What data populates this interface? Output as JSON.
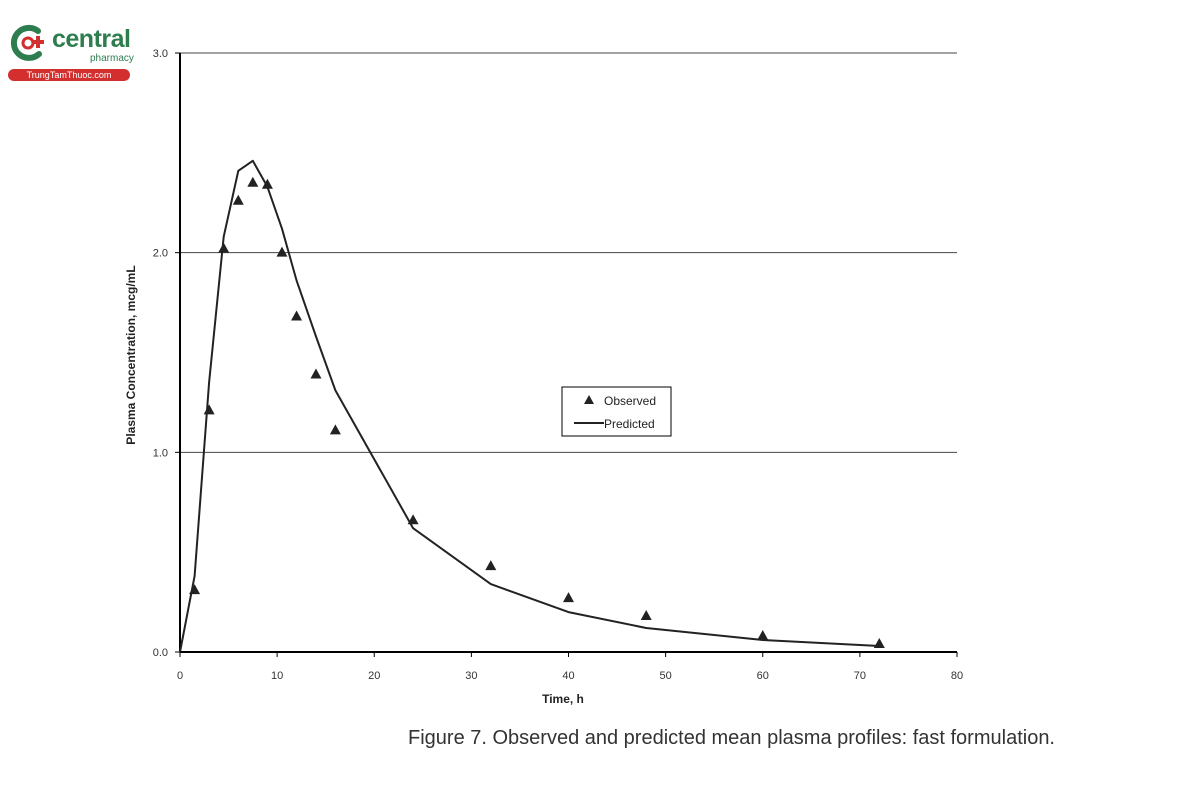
{
  "logo": {
    "brand": "central",
    "sub": "pharmacy",
    "site": "TrungTamThuoc.com",
    "colors": {
      "green": "#2e7d4f",
      "red": "#d32f2f"
    }
  },
  "caption": "Figure 7. Observed and predicted mean plasma profiles: fast formulation.",
  "chart_data": {
    "type": "line",
    "title": "",
    "xlabel": "Time, h",
    "ylabel": "Plasma Concentration,  mcg/mL",
    "xlim": [
      0,
      80
    ],
    "ylim": [
      0,
      3.0
    ],
    "xticks": [
      0,
      10,
      20,
      30,
      40,
      50,
      60,
      70,
      80
    ],
    "yticks": [
      0.0,
      1.0,
      2.0,
      3.0
    ],
    "ytick_labels": [
      "0.0",
      "1.0",
      "2.0",
      "3.0"
    ],
    "grid": "horizontal",
    "legend_position": "center-right",
    "series": [
      {
        "name": "Observed",
        "style": "triangle-markers",
        "x": [
          1.5,
          3,
          4.5,
          6,
          7.5,
          9,
          10.5,
          12,
          14,
          16,
          24,
          32,
          40,
          48,
          60,
          72
        ],
        "y": [
          0.31,
          1.21,
          2.02,
          2.26,
          2.35,
          2.34,
          2.0,
          1.68,
          1.39,
          1.11,
          0.66,
          0.43,
          0.27,
          0.18,
          0.08,
          0.04
        ]
      },
      {
        "name": "Predicted",
        "style": "line",
        "x": [
          0,
          1.5,
          3,
          4.5,
          6,
          7.5,
          9,
          10.5,
          12,
          14,
          16,
          24,
          32,
          40,
          48,
          60,
          72
        ],
        "y": [
          0,
          0.38,
          1.35,
          2.08,
          2.41,
          2.46,
          2.33,
          2.12,
          1.86,
          1.58,
          1.31,
          0.62,
          0.34,
          0.2,
          0.12,
          0.06,
          0.03
        ]
      }
    ]
  }
}
